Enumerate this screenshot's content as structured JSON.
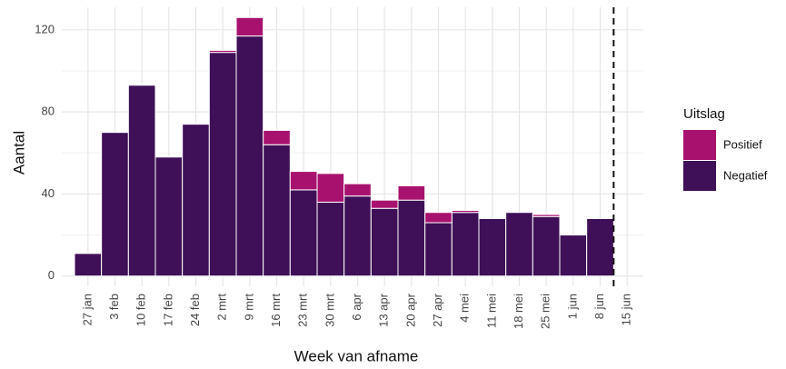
{
  "chart_data": {
    "type": "bar",
    "stacked": true,
    "x_label": "Week van afname",
    "y_label": "Aantal",
    "categories": [
      "27 jan",
      "3 feb",
      "10 feb",
      "17 feb",
      "24 feb",
      "2 mrt",
      "9 mrt",
      "16 mrt",
      "23 mrt",
      "30 mrt",
      "6 apr",
      "13 apr",
      "20 apr",
      "27 apr",
      "4 mei",
      "11 mei",
      "18 mei",
      "25 mei",
      "1 jun",
      "8 jun",
      "15 jun"
    ],
    "series": [
      {
        "name": "Negatief",
        "color": "#3f0f57",
        "values": [
          11,
          70,
          93,
          58,
          74,
          109,
          117,
          64,
          42,
          36,
          39,
          33,
          37,
          26,
          31,
          28,
          31,
          29,
          20,
          28,
          null
        ]
      },
      {
        "name": "Positief",
        "color": "#a8126f",
        "values": [
          0,
          0,
          0,
          0,
          0,
          1,
          9,
          7,
          9,
          14,
          6,
          4,
          7,
          5,
          1,
          0,
          0,
          1,
          0,
          0,
          null
        ]
      }
    ],
    "legend_title": "Uitslag",
    "legend_position": "right",
    "ylim": [
      -5,
      131
    ],
    "yticks": [
      0,
      40,
      80,
      120
    ],
    "grid": true
  }
}
